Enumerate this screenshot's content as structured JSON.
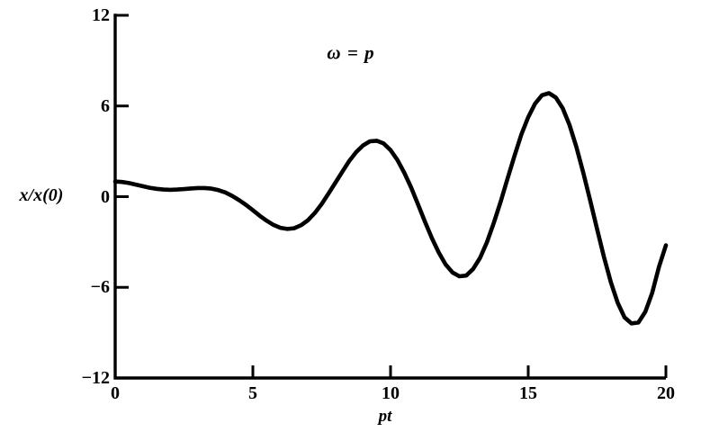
{
  "figure": {
    "ylabel": "x/x(0)",
    "xlabel": "pt",
    "annotation": "ω = p"
  },
  "chart_data": {
    "type": "line",
    "title": "",
    "xlabel": "pt",
    "ylabel": "x/x(0)",
    "annotation": "ω = p",
    "legend": [],
    "grid": false,
    "xlim": [
      0,
      20
    ],
    "ylim": [
      -12,
      12
    ],
    "xticks": [
      0,
      5,
      10,
      15,
      20
    ],
    "xtick_labels": [
      "0",
      "5",
      "10",
      "15",
      "20"
    ],
    "yticks": [
      12,
      6,
      0,
      -6,
      -12
    ],
    "ytick_labels": [
      "12",
      "6",
      "0",
      "−6",
      "−12"
    ],
    "line_color": "#000000",
    "axis_color": "#000000",
    "background_color": "#ffffff",
    "x": [
      0,
      0.25,
      0.5,
      0.75,
      1,
      1.25,
      1.5,
      1.75,
      2,
      2.25,
      2.5,
      2.75,
      3,
      3.25,
      3.5,
      3.75,
      4,
      4.25,
      4.5,
      4.75,
      5,
      5.25,
      5.5,
      5.75,
      6,
      6.25,
      6.5,
      6.75,
      7,
      7.25,
      7.5,
      7.75,
      8,
      8.25,
      8.5,
      8.75,
      9,
      9.25,
      9.5,
      9.75,
      10,
      10.25,
      10.5,
      10.75,
      11,
      11.25,
      11.5,
      11.75,
      12,
      12.25,
      12.5,
      12.75,
      13,
      13.25,
      13.5,
      13.75,
      14,
      14.25,
      14.5,
      14.75,
      15,
      15.25,
      15.5,
      15.75,
      16,
      16.25,
      16.5,
      16.75,
      17,
      17.25,
      17.5,
      17.75,
      18,
      18.25,
      18.5,
      18.75,
      19,
      19.25,
      19.5,
      19.75,
      20
    ],
    "y": [
      1,
      0.97,
      0.9,
      0.8,
      0.69,
      0.59,
      0.52,
      0.47,
      0.45,
      0.47,
      0.5,
      0.54,
      0.57,
      0.57,
      0.53,
      0.43,
      0.28,
      0.05,
      -0.23,
      -0.55,
      -0.9,
      -1.26,
      -1.59,
      -1.87,
      -2.06,
      -2.14,
      -2.09,
      -1.89,
      -1.56,
      -1.08,
      -0.48,
      0.21,
      0.93,
      1.65,
      2.36,
      2.95,
      3.39,
      3.66,
      3.7,
      3.52,
      3.08,
      2.43,
      1.58,
      0.6,
      -0.52,
      -1.67,
      -2.74,
      -3.7,
      -4.49,
      -5.02,
      -5.27,
      -5.22,
      -4.78,
      -4.05,
      -3.02,
      -1.73,
      -0.33,
      1.19,
      2.69,
      4.12,
      5.26,
      6.15,
      6.71,
      6.85,
      6.56,
      5.85,
      4.74,
      3.27,
      1.58,
      -0.26,
      -2.14,
      -3.98,
      -5.66,
      -7.02,
      -8,
      -8.39,
      -8.33,
      -7.62,
      -6.38,
      -4.63,
      -3.22
    ]
  }
}
